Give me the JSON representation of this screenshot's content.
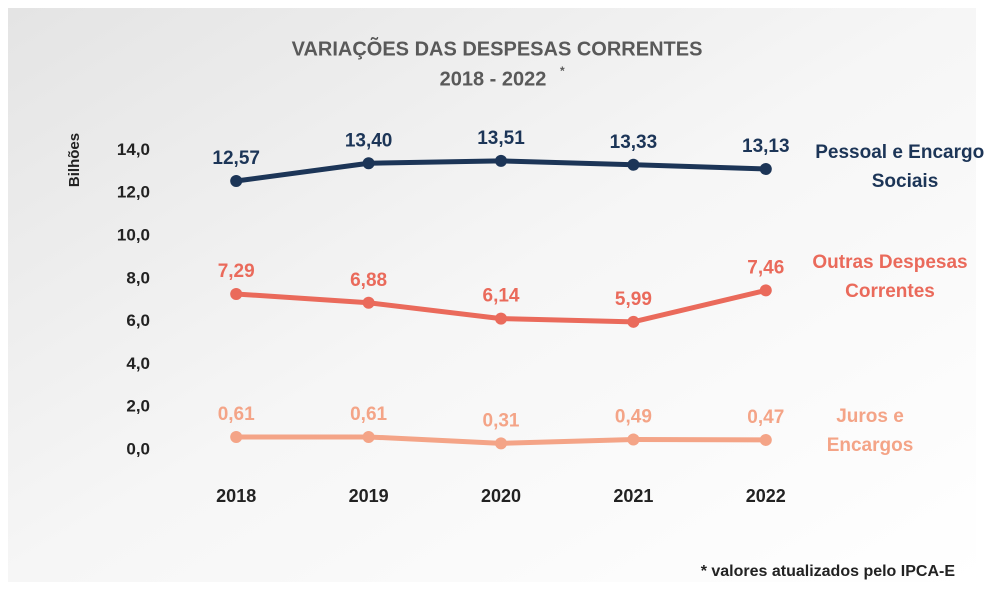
{
  "chart_data": {
    "type": "line",
    "title": "VARIAÇÕES DAS DESPESAS CORRENTES",
    "subtitle": "2018 - 2022",
    "subtitle_note_mark": "*",
    "ylabel": "Bilhões",
    "footnote": "* valores atualizados pelo IPCA-E",
    "categories": [
      "2018",
      "2019",
      "2020",
      "2021",
      "2022"
    ],
    "series": [
      {
        "name": "Pessoal e Encargos Sociais",
        "color": "#1c3557",
        "values": [
          12.57,
          13.4,
          13.51,
          13.33,
          13.13
        ],
        "value_labels": [
          "12,57",
          "13,40",
          "13,51",
          "13,33",
          "13,13"
        ]
      },
      {
        "name": "Outras Despesas Correntes",
        "color": "#ea6a5b",
        "values": [
          7.29,
          6.88,
          6.14,
          5.99,
          7.46
        ],
        "value_labels": [
          "7,29",
          "6,88",
          "6,14",
          "5,99",
          "7,46"
        ]
      },
      {
        "name": "Juros e Encargos",
        "color": "#f4a487",
        "values": [
          0.61,
          0.61,
          0.31,
          0.49,
          0.47
        ],
        "value_labels": [
          "0,61",
          "0,61",
          "0,31",
          "0,49",
          "0,47"
        ]
      }
    ],
    "ylim": [
      0,
      15
    ],
    "yticks": [
      {
        "value": 0,
        "label": "0,0"
      },
      {
        "value": 2,
        "label": "2,0"
      },
      {
        "value": 4,
        "label": "4,0"
      },
      {
        "value": 6,
        "label": "6,0"
      },
      {
        "value": 8,
        "label": "8,0"
      },
      {
        "value": 10,
        "label": "10,0"
      },
      {
        "value": 12,
        "label": "12,0"
      },
      {
        "value": 14,
        "label": "14,0"
      }
    ],
    "grid": false
  }
}
